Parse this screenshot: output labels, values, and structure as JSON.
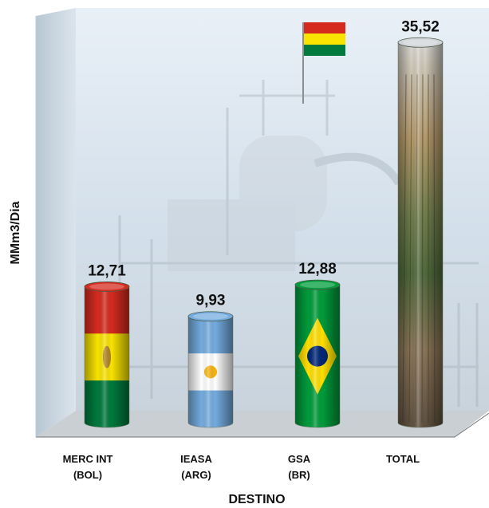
{
  "chart_data": {
    "type": "bar",
    "bar_shape": "cylinder",
    "view": "3d",
    "categories": [
      [
        "MERC INT",
        "(BOL)"
      ],
      [
        "IEASA",
        "(ARG)"
      ],
      [
        "GSA",
        "(BR)"
      ],
      [
        "TOTAL",
        ""
      ]
    ],
    "values": [
      12.71,
      9.93,
      12.88,
      35.52
    ],
    "value_labels": [
      "12,71",
      "9,93",
      "12,88",
      "35,52"
    ],
    "bar_fills": [
      "flag-bolivia",
      "flag-argentina",
      "flag-brazil",
      "photo-texture"
    ],
    "xlabel": "DESTINO",
    "ylabel": "MMm3/Dia",
    "ylim": [
      0,
      38
    ],
    "grid": false,
    "legend": "none",
    "background": "gas-plant-photo-with-bolivian-flag",
    "colors": {
      "bolivia": [
        "#d52b1e",
        "#f9e300",
        "#007a3d"
      ],
      "argentina": [
        "#74acdf",
        "#ffffff",
        "#f6b40e"
      ],
      "brazil": [
        "#009c3b",
        "#ffdf00",
        "#002776"
      ],
      "wall": "#c9d8e6",
      "floor": "#b9bfc4"
    }
  }
}
